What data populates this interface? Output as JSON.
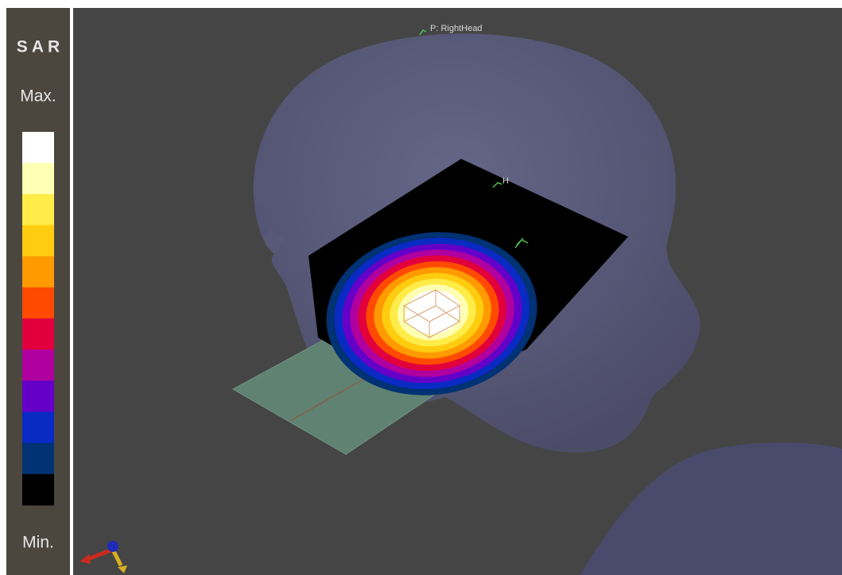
{
  "sar_legend": {
    "title": "S A R",
    "max_label": "Max.",
    "min_label": "Min.",
    "colors": [
      "#ffffff",
      "#ffffb4",
      "#ffec48",
      "#ffcc10",
      "#ff9a00",
      "#ff4a00",
      "#e2003c",
      "#b000a0",
      "#6400c8",
      "#0a2ac4",
      "#003274",
      "#000000"
    ]
  },
  "viewport": {
    "probe_label": "P: RightHead",
    "marker_label": "H"
  }
}
